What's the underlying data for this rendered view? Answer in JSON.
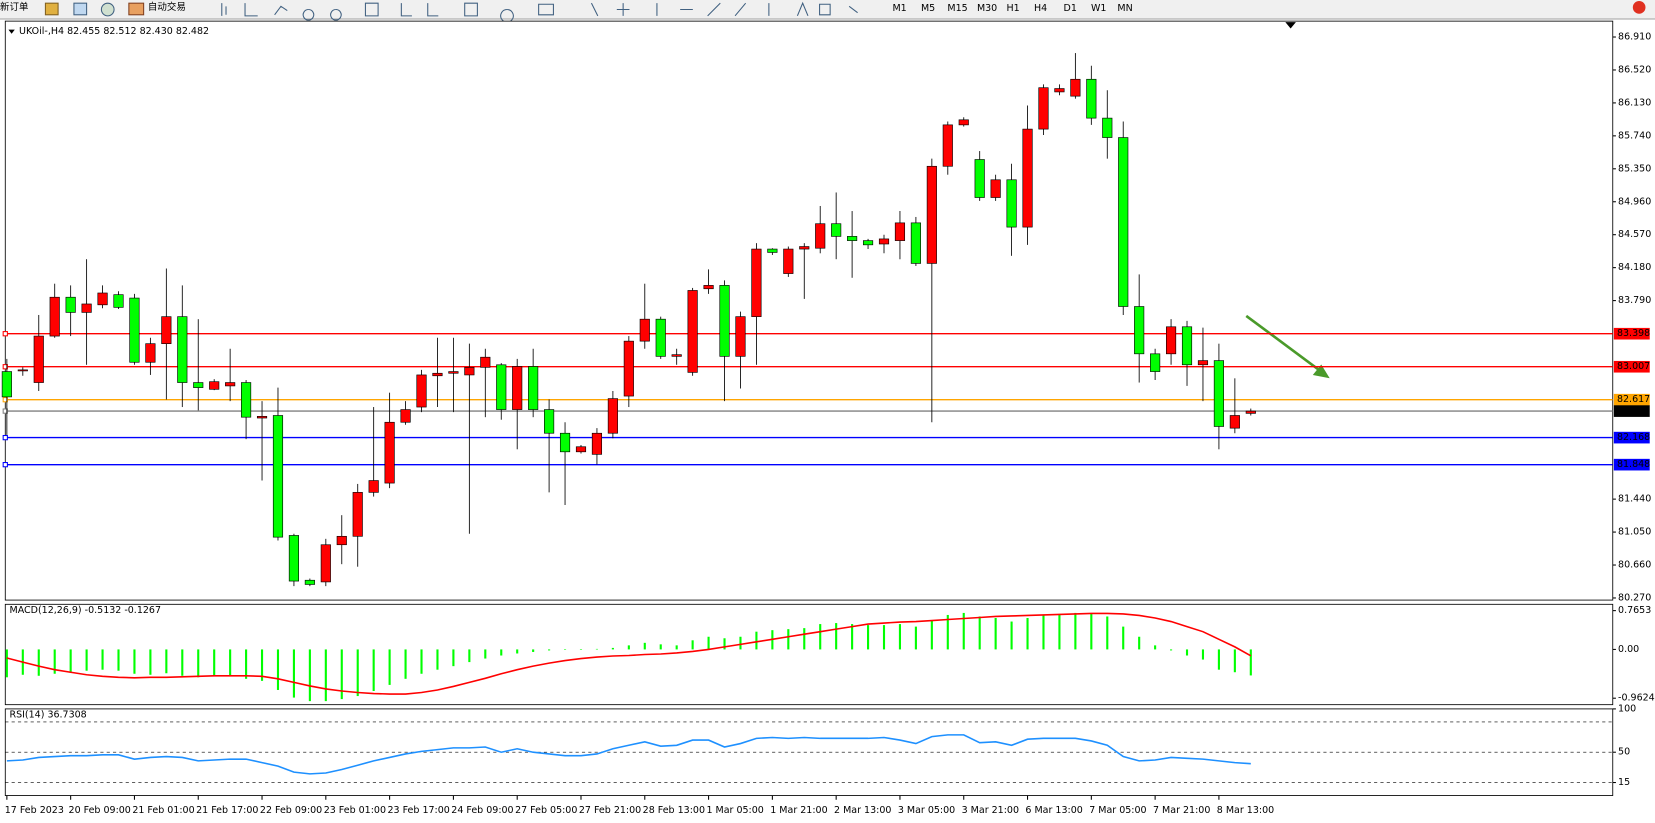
{
  "toolbar": {
    "buttons": [
      "新订单",
      "自动交易"
    ],
    "timeframes": [
      "M1",
      "M5",
      "M15",
      "M30",
      "H1",
      "H4",
      "D1",
      "W1",
      "MN"
    ]
  },
  "chart_data": [
    {
      "type": "candlestick",
      "legend": "UKOil-,H4  82.455 82.512 82.430 82.482",
      "categories": [
        "17 Feb 2023",
        null,
        null,
        null,
        "20 Feb 09:00",
        null,
        null,
        null,
        "21 Feb 01:00",
        null,
        null,
        null,
        "21 Feb 17:00",
        null,
        null,
        null,
        "22 Feb 09:00",
        null,
        null,
        null,
        "23 Feb 01:00",
        null,
        null,
        null,
        "23 Feb 17:00",
        null,
        null,
        null,
        "24 Feb 09:00",
        null,
        null,
        null,
        "27 Feb 05:00",
        null,
        null,
        null,
        "27 Feb 21:00",
        null,
        null,
        null,
        "28 Feb 13:00",
        null,
        null,
        null,
        "1 Mar 05:00",
        null,
        null,
        null,
        "1 Mar 21:00",
        null,
        null,
        null,
        "2 Mar 13:00",
        null,
        null,
        null,
        "3 Mar 05:00",
        null,
        null,
        null,
        "3 Mar 21:00",
        null,
        null,
        null,
        "6 Mar 13:00",
        null,
        null,
        null,
        "7 Mar 05:00",
        null,
        null,
        null,
        "7 Mar 21:00",
        null,
        null,
        null,
        "8 Mar 13:00",
        null,
        null
      ],
      "open": [
        82.95,
        82.96,
        82.82,
        83.37,
        83.83,
        83.65,
        83.74,
        83.86,
        83.82,
        83.06,
        83.28,
        83.6,
        82.82,
        82.74,
        82.78,
        82.82,
        82.4,
        82.43,
        81.01,
        80.48,
        80.46,
        80.9,
        81.0,
        81.52,
        81.63,
        82.35,
        82.53,
        82.9,
        82.93,
        82.91,
        83.0,
        83.03,
        82.5,
        83.01,
        82.5,
        82.22,
        82.0,
        81.97,
        82.22,
        82.66,
        83.31,
        83.57,
        83.13,
        82.94,
        83.93,
        83.97,
        83.13,
        83.6,
        84.4,
        84.11,
        84.4,
        84.41,
        84.7,
        84.55,
        84.5,
        84.46,
        84.5,
        84.71,
        84.23,
        85.38,
        85.87,
        85.46,
        85.01,
        85.22,
        84.66,
        85.82,
        86.26,
        86.21,
        86.41,
        85.95,
        85.72,
        83.72,
        83.16,
        83.16,
        83.48,
        83.03,
        83.08,
        82.28,
        82.455
      ],
      "high": [
        83.1,
        83.0,
        83.62,
        83.99,
        83.97,
        84.28,
        83.97,
        83.9,
        83.87,
        83.35,
        84.17,
        83.97,
        83.57,
        82.86,
        83.22,
        82.85,
        82.6,
        82.76,
        81.03,
        80.5,
        80.97,
        81.25,
        81.62,
        82.53,
        82.7,
        82.6,
        82.97,
        83.35,
        83.35,
        83.28,
        83.22,
        83.05,
        83.1,
        83.22,
        82.62,
        82.35,
        82.08,
        82.28,
        82.72,
        83.37,
        83.99,
        83.6,
        83.22,
        83.94,
        84.16,
        84.03,
        83.66,
        84.47,
        84.41,
        84.43,
        84.47,
        84.91,
        85.07,
        84.85,
        84.52,
        84.57,
        84.85,
        84.78,
        85.47,
        85.91,
        85.96,
        85.56,
        85.28,
        85.41,
        86.1,
        86.35,
        86.35,
        86.72,
        86.57,
        86.28,
        85.91,
        84.1,
        83.22,
        83.57,
        83.55,
        83.47,
        83.28,
        82.87,
        82.512
      ],
      "low": [
        82.2,
        82.9,
        82.72,
        83.35,
        83.37,
        83.03,
        83.7,
        83.69,
        83.03,
        82.91,
        82.62,
        82.53,
        82.49,
        82.73,
        82.6,
        82.15,
        81.66,
        80.95,
        80.41,
        80.41,
        80.41,
        80.67,
        80.64,
        81.47,
        81.57,
        82.32,
        82.47,
        82.53,
        82.47,
        81.03,
        82.41,
        82.38,
        82.03,
        82.41,
        81.52,
        81.37,
        81.98,
        81.85,
        82.16,
        82.53,
        83.22,
        83.1,
        83.03,
        82.9,
        83.87,
        82.6,
        82.75,
        83.03,
        84.33,
        84.07,
        83.81,
        84.35,
        84.28,
        84.06,
        84.4,
        84.35,
        84.28,
        84.2,
        82.35,
        85.28,
        85.85,
        84.97,
        84.97,
        84.32,
        84.45,
        85.75,
        86.22,
        86.18,
        85.87,
        85.47,
        83.62,
        82.82,
        82.85,
        83.03,
        82.78,
        82.6,
        82.03,
        82.22,
        82.43
      ],
      "close": [
        82.65,
        82.97,
        83.37,
        83.83,
        83.65,
        83.75,
        83.88,
        83.71,
        83.06,
        83.28,
        83.6,
        82.82,
        82.76,
        82.83,
        82.82,
        82.41,
        82.42,
        80.99,
        80.47,
        80.43,
        80.9,
        81.0,
        81.52,
        81.66,
        82.35,
        82.5,
        82.91,
        82.93,
        82.95,
        83.0,
        83.12,
        82.5,
        83.01,
        82.5,
        82.22,
        82.0,
        82.06,
        82.22,
        82.63,
        83.31,
        83.57,
        83.13,
        83.15,
        83.91,
        83.97,
        83.13,
        83.6,
        84.4,
        84.36,
        84.4,
        84.43,
        84.7,
        84.55,
        84.5,
        84.45,
        84.52,
        84.71,
        84.23,
        85.38,
        85.87,
        85.93,
        85.01,
        85.22,
        84.66,
        85.82,
        86.31,
        86.3,
        86.41,
        85.95,
        85.72,
        83.72,
        83.16,
        82.95,
        83.48,
        83.03,
        83.08,
        82.3,
        82.43,
        82.482
      ],
      "up_color": "#ff0000",
      "down_color": "#00ff00",
      "ylim": [
        80.245,
        87.098
      ],
      "yticks": [
        {
          "value": 86.91,
          "label": "86.910"
        },
        {
          "value": 86.52,
          "label": "86.520"
        },
        {
          "value": 86.13,
          "label": "86.130"
        },
        {
          "value": 85.74,
          "label": "85.740"
        },
        {
          "value": 85.35,
          "label": "85.350"
        },
        {
          "value": 84.96,
          "label": "84.960"
        },
        {
          "value": 84.57,
          "label": "84.570"
        },
        {
          "value": 84.18,
          "label": "84.180"
        },
        {
          "value": 83.79,
          "label": "83.790"
        },
        {
          "value": 81.44,
          "label": "81.440"
        },
        {
          "value": 81.05,
          "label": "81.050"
        },
        {
          "value": 80.66,
          "label": "80.660"
        },
        {
          "value": 80.27,
          "label": "80.270"
        }
      ],
      "hlines": [
        {
          "value": 83.398,
          "color": "#ff0000",
          "label_color": "#ff0000"
        },
        {
          "value": 83.007,
          "color": "#ff0000",
          "label_color": "#ff0000"
        },
        {
          "value": 82.617,
          "color": "#ffa500",
          "label_color": "#ffa500"
        },
        {
          "value": 82.482,
          "color": "#808080",
          "label_color": "#000000"
        },
        {
          "value": 82.168,
          "color": "#0000ff",
          "label_color": "#0000ff"
        },
        {
          "value": 81.848,
          "color": "#0000ff",
          "label_color": "#0000ff"
        }
      ]
    },
    {
      "type": "macd",
      "legend": "MACD(12,26,9) -0.5132 -0.1267",
      "histogram": [
        -0.55,
        -0.5,
        -0.52,
        -0.48,
        -0.45,
        -0.42,
        -0.4,
        -0.42,
        -0.48,
        -0.5,
        -0.47,
        -0.52,
        -0.55,
        -0.53,
        -0.52,
        -0.58,
        -0.62,
        -0.8,
        -0.95,
        -1.02,
        -1.02,
        -0.98,
        -0.92,
        -0.82,
        -0.7,
        -0.58,
        -0.48,
        -0.4,
        -0.33,
        -0.25,
        -0.18,
        -0.12,
        -0.08,
        -0.05,
        -0.02,
        0.0,
        -0.01,
        0.01,
        0.03,
        0.08,
        0.13,
        0.1,
        0.08,
        0.18,
        0.25,
        0.22,
        0.25,
        0.35,
        0.38,
        0.4,
        0.42,
        0.5,
        0.52,
        0.5,
        0.48,
        0.48,
        0.5,
        0.45,
        0.58,
        0.68,
        0.72,
        0.65,
        0.62,
        0.55,
        0.62,
        0.68,
        0.7,
        0.72,
        0.7,
        0.65,
        0.45,
        0.25,
        0.08,
        -0.02,
        -0.12,
        -0.2,
        -0.4,
        -0.45,
        -0.5132
      ],
      "signal": [
        -0.17,
        -0.25,
        -0.33,
        -0.4,
        -0.45,
        -0.5,
        -0.53,
        -0.55,
        -0.56,
        -0.55,
        -0.55,
        -0.54,
        -0.53,
        -0.52,
        -0.52,
        -0.52,
        -0.53,
        -0.58,
        -0.65,
        -0.72,
        -0.78,
        -0.82,
        -0.85,
        -0.87,
        -0.88,
        -0.88,
        -0.85,
        -0.8,
        -0.73,
        -0.65,
        -0.57,
        -0.48,
        -0.4,
        -0.33,
        -0.27,
        -0.22,
        -0.18,
        -0.15,
        -0.13,
        -0.12,
        -0.1,
        -0.09,
        -0.07,
        -0.04,
        0.0,
        0.05,
        0.1,
        0.15,
        0.2,
        0.25,
        0.3,
        0.35,
        0.4,
        0.45,
        0.5,
        0.52,
        0.54,
        0.55,
        0.57,
        0.59,
        0.61,
        0.63,
        0.65,
        0.66,
        0.67,
        0.68,
        0.69,
        0.7,
        0.71,
        0.71,
        0.7,
        0.67,
        0.62,
        0.55,
        0.45,
        0.35,
        0.2,
        0.05,
        -0.1267
      ],
      "histogram_color": "#00ff00",
      "signal_color": "#ff0000",
      "ylim": [
        -1.09,
        0.89
      ],
      "yticks": [
        0.7653,
        {
          "value": 0,
          "label": "0.00"
        },
        -0.9624
      ]
    },
    {
      "type": "line",
      "legend": "RSI(14) 36.7308",
      "values": [
        40,
        41,
        44,
        45,
        46,
        46,
        47,
        47,
        42,
        44,
        45,
        44,
        40,
        41,
        42,
        42,
        38,
        34,
        27,
        25,
        26,
        30,
        35,
        40,
        44,
        48,
        51,
        53,
        55,
        55,
        56,
        50,
        54,
        50,
        48,
        46,
        46,
        48,
        54,
        58,
        62,
        57,
        58,
        64,
        64,
        56,
        60,
        66,
        67,
        66,
        67,
        66,
        66,
        66,
        66,
        67,
        64,
        60,
        68,
        70,
        70,
        61,
        62,
        58,
        65,
        66,
        66,
        66,
        63,
        58,
        45,
        40,
        41,
        44,
        43,
        42,
        40,
        38,
        36.7308
      ],
      "color": "#1e90ff",
      "ylim": [
        0,
        100
      ],
      "yticks": [
        100,
        50,
        15
      ],
      "levels": [
        85,
        50,
        15
      ]
    }
  ]
}
